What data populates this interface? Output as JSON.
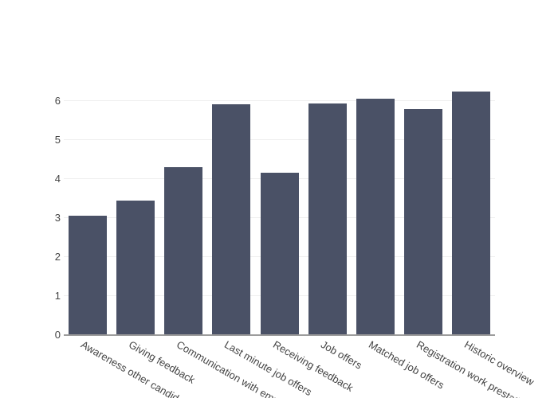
{
  "chart_data": {
    "type": "bar",
    "title": "",
    "xlabel": "",
    "ylabel": "",
    "categories": [
      "Awareness other candidates",
      "Giving feedback",
      "Communication with employer",
      "Last minute job offers",
      "Receiving feedback",
      "Job offers",
      "Matched job offers",
      "Registration work prestations",
      "Historic overview"
    ],
    "values": [
      3.06,
      3.43,
      4.29,
      5.91,
      4.15,
      5.92,
      6.05,
      5.78,
      6.23
    ],
    "yticks": [
      0,
      1,
      2,
      3,
      4,
      5,
      6
    ],
    "ytick_labels": [
      "0",
      "1",
      "2",
      "3",
      "4",
      "5",
      "6"
    ],
    "ylim": [
      0,
      6.56
    ],
    "grid": true,
    "legend": "none",
    "tick_angle_deg": 30,
    "colors": {
      "bar": "#4a5166",
      "gridline": "#eeeeee",
      "axis_line": "#9c9c9c",
      "tick_text": "#444444",
      "background": "#ffffff"
    }
  }
}
